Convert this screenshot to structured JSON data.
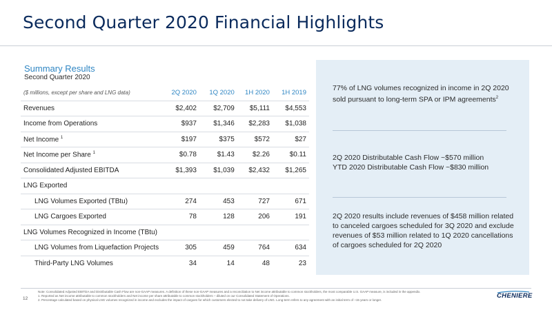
{
  "title": "Second Quarter 2020 Financial Highlights",
  "summary": {
    "heading": "Summary Results",
    "subheading": "Second Quarter 2020"
  },
  "table": {
    "units_note": "($ millions, except per share and LNG data)",
    "columns": [
      "2Q 2020",
      "1Q 2020",
      "1H 2020",
      "1H 2019"
    ],
    "rows": [
      {
        "label": "Revenues",
        "sup": "",
        "values": [
          "$2,402",
          "$2,709",
          "$5,111",
          "$4,553"
        ]
      },
      {
        "label": "Income from Operations",
        "sup": "",
        "values": [
          "$937",
          "$1,346",
          "$2,283",
          "$1,038"
        ]
      },
      {
        "label": "Net Income",
        "sup": "1",
        "values": [
          "$197",
          "$375",
          "$572",
          "$27"
        ]
      },
      {
        "label": "Net Income per Share",
        "sup": "1",
        "values": [
          "$0.78",
          "$1.43",
          "$2.26",
          "$0.11"
        ]
      },
      {
        "label": "Consolidated Adjusted EBITDA",
        "sup": "",
        "values": [
          "$1,393",
          "$1,039",
          "$2,432",
          "$1,265"
        ]
      },
      {
        "label": "LNG Exported",
        "sup": "",
        "values": [
          "",
          "",
          "",
          ""
        ]
      },
      {
        "label": "LNG Volumes Exported (TBtu)",
        "sup": "",
        "values": [
          "274",
          "453",
          "727",
          "671"
        ]
      },
      {
        "label": "LNG Cargoes Exported",
        "sup": "",
        "values": [
          "78",
          "128",
          "206",
          "191"
        ]
      },
      {
        "label": "LNG Volumes Recognized in Income (TBtu)",
        "sup": "",
        "values": [
          "",
          "",
          "",
          ""
        ]
      },
      {
        "label": "LNG Volumes from Liquefaction Projects",
        "sup": "",
        "values": [
          "305",
          "459",
          "764",
          "634"
        ]
      },
      {
        "label": "Third-Party LNG Volumes",
        "sup": "",
        "values": [
          "34",
          "14",
          "48",
          "23"
        ]
      }
    ]
  },
  "highlights": [
    {
      "text": "77% of LNG volumes recognized in income in 2Q 2020 sold pursuant to long-term SPA or IPM agreements",
      "sup": "2"
    },
    {
      "line1": "2Q 2020 Distributable Cash Flow ~$570 million",
      "line2": "YTD 2020 Distributable Cash Flow ~$830 million"
    },
    {
      "text": "2Q 2020 results include revenues of $458 million related to canceled cargoes scheduled for 3Q 2020 and exclude revenues of $53 million related to 1Q 2020 cancellations of cargoes scheduled for 2Q 2020"
    }
  ],
  "footer": {
    "page_number": "12",
    "note_main": "Note: Consolidated Adjusted EBITDA and Distributable Cash Flow are non-GAAP measures. A definition of these non-GAAP measures and a reconciliation to Net income attributable to common stockholders, the most comparable U.S. GAAP measure, is included in the appendix.",
    "note_1": "1.      Reported as Net income attributable to common stockholders and Net income per share attributable to common stockholders – diluted on our Consolidated Statement of Operations.",
    "note_2": "2.      Percentage calculated based on physical LNG volumes recognized in income and excludes the impact of cargoes for which customers elected to not take delivery of LNG. Long-term refers to any agreement with an initial term of ~15 years or longer.",
    "logo_text": "CHENIERE"
  }
}
